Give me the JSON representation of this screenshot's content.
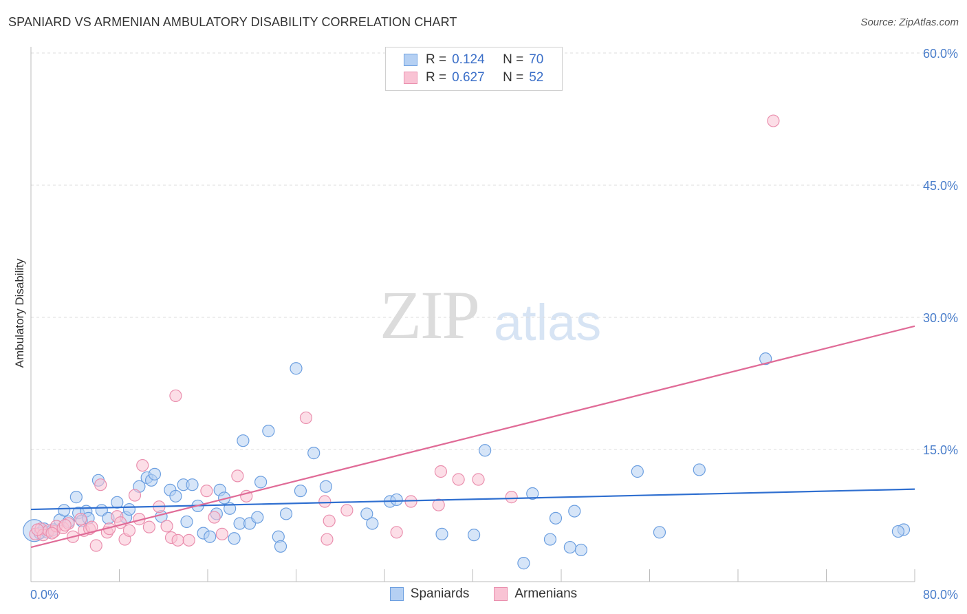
{
  "title": "SPANIARD VS ARMENIAN AMBULATORY DISABILITY CORRELATION CHART",
  "source": "Source: ZipAtlas.com",
  "watermark": {
    "zip": "ZIP",
    "atlas": "atlas"
  },
  "legend": {
    "r_label": "R =",
    "n_label": "N =",
    "rows": [
      {
        "r": "0.124",
        "n": "70"
      },
      {
        "r": "0.627",
        "n": "52"
      }
    ]
  },
  "colors": {
    "spaniards_fill": "#b5d0f3",
    "spaniards_stroke": "#6c9fe0",
    "spaniards_line": "#2f6fd0",
    "armenians_fill": "#f9c3d4",
    "armenians_stroke": "#ea8fae",
    "armenians_line": "#e06b97",
    "tick_text": "#4a7ecb",
    "grid": "#dddddd"
  },
  "chart_data": {
    "type": "scatter",
    "title": "SPANIARD VS ARMENIAN AMBULATORY DISABILITY CORRELATION CHART",
    "xlabel": "",
    "ylabel": "Ambulatory Disability",
    "xlim": [
      0,
      80
    ],
    "ylim": [
      0,
      60
    ],
    "x_tick_labels": [
      "0.0%",
      "80.0%"
    ],
    "y_ticks": [
      15,
      30,
      45,
      60
    ],
    "y_tick_labels": [
      "15.0%",
      "30.0%",
      "45.0%",
      "60.0%"
    ],
    "grid": "horizontal dashed",
    "legend_position": "top-center and bottom",
    "series": [
      {
        "name": "Spaniards",
        "r": 0.124,
        "n": 70,
        "trend": {
          "x": [
            0,
            80
          ],
          "y": [
            8.2,
            10.5
          ]
        },
        "points": [
          [
            0.3,
            5.8
          ],
          [
            0.8,
            5.5
          ],
          [
            1.2,
            6.0
          ],
          [
            1.5,
            5.6
          ],
          [
            2.0,
            5.9
          ],
          [
            2.6,
            7.0
          ],
          [
            3.0,
            8.1
          ],
          [
            3.4,
            6.8
          ],
          [
            4.1,
            9.6
          ],
          [
            4.3,
            7.8
          ],
          [
            4.6,
            6.9
          ],
          [
            5.0,
            8.0
          ],
          [
            5.2,
            7.2
          ],
          [
            6.1,
            11.5
          ],
          [
            6.4,
            8.1
          ],
          [
            7.0,
            7.2
          ],
          [
            7.8,
            9.0
          ],
          [
            8.6,
            7.3
          ],
          [
            8.9,
            8.2
          ],
          [
            9.8,
            10.8
          ],
          [
            10.5,
            11.8
          ],
          [
            10.9,
            11.5
          ],
          [
            11.2,
            12.2
          ],
          [
            11.8,
            7.4
          ],
          [
            12.6,
            10.4
          ],
          [
            13.1,
            9.7
          ],
          [
            13.8,
            11.0
          ],
          [
            14.1,
            6.8
          ],
          [
            14.6,
            11.0
          ],
          [
            15.1,
            8.6
          ],
          [
            15.6,
            5.5
          ],
          [
            16.2,
            5.1
          ],
          [
            16.8,
            7.7
          ],
          [
            17.1,
            10.4
          ],
          [
            17.5,
            9.5
          ],
          [
            18.0,
            8.3
          ],
          [
            18.4,
            4.9
          ],
          [
            18.9,
            6.6
          ],
          [
            19.2,
            16.0
          ],
          [
            19.8,
            6.6
          ],
          [
            20.5,
            7.3
          ],
          [
            20.8,
            11.3
          ],
          [
            21.5,
            17.1
          ],
          [
            22.4,
            5.1
          ],
          [
            22.6,
            4.0
          ],
          [
            23.1,
            7.7
          ],
          [
            24.0,
            24.2
          ],
          [
            24.4,
            10.3
          ],
          [
            25.6,
            14.6
          ],
          [
            26.7,
            10.8
          ],
          [
            30.4,
            7.7
          ],
          [
            30.9,
            6.6
          ],
          [
            32.5,
            9.1
          ],
          [
            33.1,
            9.3
          ],
          [
            37.2,
            5.4
          ],
          [
            40.1,
            5.3
          ],
          [
            41.1,
            14.9
          ],
          [
            44.6,
            2.1
          ],
          [
            45.4,
            10.0
          ],
          [
            47.0,
            4.8
          ],
          [
            47.5,
            7.2
          ],
          [
            48.8,
            3.9
          ],
          [
            49.2,
            8.0
          ],
          [
            49.8,
            3.6
          ],
          [
            54.9,
            12.5
          ],
          [
            56.9,
            5.6
          ],
          [
            60.5,
            12.7
          ],
          [
            66.5,
            25.3
          ],
          [
            79.0,
            5.9
          ],
          [
            78.5,
            5.7
          ]
        ]
      },
      {
        "name": "Armenians",
        "r": 0.627,
        "n": 52,
        "trend": {
          "x": [
            0,
            80
          ],
          "y": [
            3.9,
            29.0
          ]
        },
        "points": [
          [
            0.4,
            5.4
          ],
          [
            0.9,
            6.0
          ],
          [
            1.1,
            5.3
          ],
          [
            1.6,
            5.8
          ],
          [
            2.1,
            5.7
          ],
          [
            2.3,
            6.3
          ],
          [
            2.9,
            6.1
          ],
          [
            3.4,
            6.6
          ],
          [
            3.8,
            5.1
          ],
          [
            4.5,
            7.1
          ],
          [
            4.8,
            5.8
          ],
          [
            5.3,
            6.0
          ],
          [
            5.9,
            4.1
          ],
          [
            6.3,
            11.0
          ],
          [
            6.9,
            5.6
          ],
          [
            7.1,
            6.0
          ],
          [
            7.8,
            7.4
          ],
          [
            8.1,
            6.7
          ],
          [
            8.5,
            4.8
          ],
          [
            8.9,
            5.8
          ],
          [
            9.4,
            9.8
          ],
          [
            9.8,
            7.1
          ],
          [
            10.1,
            13.2
          ],
          [
            10.7,
            6.2
          ],
          [
            11.6,
            8.5
          ],
          [
            12.3,
            6.3
          ],
          [
            12.7,
            5.0
          ],
          [
            13.1,
            21.1
          ],
          [
            13.3,
            4.7
          ],
          [
            14.3,
            4.7
          ],
          [
            15.9,
            10.3
          ],
          [
            16.6,
            7.3
          ],
          [
            17.3,
            5.4
          ],
          [
            18.7,
            12.0
          ],
          [
            19.5,
            9.7
          ],
          [
            24.9,
            18.6
          ],
          [
            26.6,
            9.1
          ],
          [
            26.8,
            4.8
          ],
          [
            27.0,
            6.9
          ],
          [
            28.6,
            8.1
          ],
          [
            33.1,
            5.6
          ],
          [
            34.4,
            9.1
          ],
          [
            36.9,
            8.7
          ],
          [
            37.1,
            12.5
          ],
          [
            38.7,
            11.6
          ],
          [
            40.5,
            11.6
          ],
          [
            43.5,
            9.6
          ],
          [
            67.2,
            52.3
          ],
          [
            0.6,
            5.9
          ],
          [
            1.9,
            5.5
          ],
          [
            3.1,
            6.4
          ],
          [
            5.5,
            6.2
          ]
        ]
      }
    ]
  }
}
